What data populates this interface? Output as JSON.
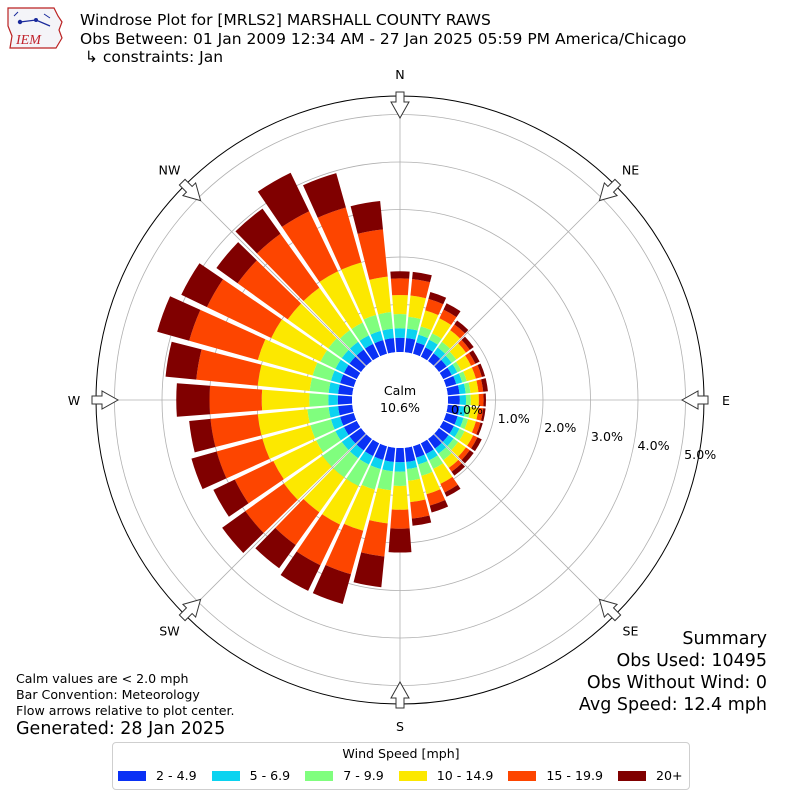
{
  "header": {
    "title_line1": "Windrose Plot for [MRLS2] MARSHALL COUNTY RAWS",
    "title_line2": "Obs Between: 01 Jan 2009 12:34 AM - 27 Jan 2025 05:59 PM America/Chicago",
    "title_line3": " ↳ constraints: Jan",
    "logo_text": "IEM"
  },
  "notes": {
    "line1": "Calm values are < 2.0 mph",
    "line2": "Bar Convention: Meteorology",
    "line3": "Flow arrows relative to plot center.",
    "generated": "Generated: 28 Jan 2025"
  },
  "summary": {
    "heading": "Summary",
    "obs_used": "Obs Used: 10495",
    "obs_without_wind": "Obs Without Wind: 0",
    "avg_speed": "Avg Speed: 12.4 mph"
  },
  "chart_data": {
    "type": "windrose",
    "units": "percent of observations",
    "calm": {
      "label": "Calm",
      "value": "10.6%"
    },
    "radial_ticks": [
      "0.0%",
      "1.0%",
      "2.0%",
      "3.0%",
      "4.0%",
      "5.0%"
    ],
    "radial_range": [
      0,
      5.5
    ],
    "direction_labels": [
      "N",
      "NE",
      "E",
      "SE",
      "S",
      "SW",
      "W",
      "NW"
    ],
    "legend_title": "Wind Speed [mph]",
    "bins": [
      {
        "label": "2 - 4.9",
        "color": "#0a31f5"
      },
      {
        "label": "5 - 6.9",
        "color": "#0bd3f0"
      },
      {
        "label": "7 - 9.9",
        "color": "#80fe7e"
      },
      {
        "label": "10 - 14.9",
        "color": "#fce800"
      },
      {
        "label": "15 - 19.9",
        "color": "#fd4500"
      },
      {
        "label": "20+",
        "color": "#800000"
      }
    ],
    "directions": [
      {
        "dir": 0,
        "cum": [
          0.3,
          0.5,
          0.8,
          1.2,
          1.55,
          1.7
        ]
      },
      {
        "dir": 10,
        "cum": [
          0.3,
          0.5,
          0.75,
          1.2,
          1.55,
          1.7
        ]
      },
      {
        "dir": 20,
        "cum": [
          0.25,
          0.42,
          0.6,
          0.95,
          1.2,
          1.35
        ]
      },
      {
        "dir": 30,
        "cum": [
          0.22,
          0.4,
          0.55,
          0.9,
          1.1,
          1.25
        ]
      },
      {
        "dir": 40,
        "cum": [
          0.2,
          0.35,
          0.5,
          0.8,
          0.95,
          1.05
        ]
      },
      {
        "dir": 50,
        "cum": [
          0.2,
          0.33,
          0.45,
          0.7,
          0.8,
          0.9
        ]
      },
      {
        "dir": 60,
        "cum": [
          0.2,
          0.33,
          0.42,
          0.65,
          0.75,
          0.85
        ]
      },
      {
        "dir": 70,
        "cum": [
          0.22,
          0.35,
          0.45,
          0.65,
          0.78,
          0.85
        ]
      },
      {
        "dir": 80,
        "cum": [
          0.25,
          0.38,
          0.48,
          0.65,
          0.75,
          0.85
        ]
      },
      {
        "dir": 90,
        "cum": [
          0.25,
          0.38,
          0.48,
          0.65,
          0.75,
          0.8
        ]
      },
      {
        "dir": 100,
        "cum": [
          0.25,
          0.38,
          0.48,
          0.65,
          0.75,
          0.8
        ]
      },
      {
        "dir": 110,
        "cum": [
          0.25,
          0.38,
          0.48,
          0.65,
          0.75,
          0.8
        ]
      },
      {
        "dir": 120,
        "cum": [
          0.25,
          0.38,
          0.5,
          0.7,
          0.8,
          0.9
        ]
      },
      {
        "dir": 130,
        "cum": [
          0.25,
          0.38,
          0.5,
          0.7,
          0.8,
          0.9
        ]
      },
      {
        "dir": 140,
        "cum": [
          0.25,
          0.38,
          0.55,
          0.75,
          0.85,
          0.95
        ]
      },
      {
        "dir": 150,
        "cum": [
          0.25,
          0.4,
          0.6,
          0.95,
          1.15,
          1.25
        ]
      },
      {
        "dir": 160,
        "cum": [
          0.25,
          0.4,
          0.65,
          1.05,
          1.3,
          1.45
        ]
      },
      {
        "dir": 170,
        "cum": [
          0.3,
          0.45,
          0.7,
          1.15,
          1.5,
          1.65
        ]
      },
      {
        "dir": 180,
        "cum": [
          0.3,
          0.5,
          0.8,
          1.3,
          1.7,
          2.2
        ]
      },
      {
        "dir": 190,
        "cum": [
          0.3,
          0.5,
          0.9,
          1.6,
          2.3,
          2.95
        ]
      },
      {
        "dir": 200,
        "cum": [
          0.3,
          0.5,
          0.95,
          1.85,
          2.8,
          3.45
        ]
      },
      {
        "dir": 210,
        "cum": [
          0.3,
          0.5,
          1.0,
          1.9,
          2.85,
          3.45
        ]
      },
      {
        "dir": 220,
        "cum": [
          0.3,
          0.5,
          1.0,
          1.9,
          2.75,
          3.35
        ]
      },
      {
        "dir": 230,
        "cum": [
          0.3,
          0.5,
          1.0,
          2.0,
          3.0,
          3.6
        ]
      },
      {
        "dir": 240,
        "cum": [
          0.3,
          0.5,
          0.95,
          1.95,
          2.85,
          3.35
        ]
      },
      {
        "dir": 250,
        "cum": [
          0.3,
          0.5,
          0.95,
          2.0,
          3.0,
          3.55
        ]
      },
      {
        "dir": 260,
        "cum": [
          0.3,
          0.5,
          0.95,
          2.0,
          3.0,
          3.45
        ]
      },
      {
        "dir": 270,
        "cum": [
          0.3,
          0.5,
          0.9,
          1.9,
          3.0,
          3.7
        ]
      },
      {
        "dir": 280,
        "cum": [
          0.3,
          0.5,
          0.9,
          2.0,
          3.3,
          3.95
        ]
      },
      {
        "dir": 290,
        "cum": [
          0.3,
          0.5,
          0.9,
          2.1,
          3.6,
          4.3
        ]
      },
      {
        "dir": 300,
        "cum": [
          0.3,
          0.5,
          0.85,
          2.0,
          3.5,
          4.1
        ]
      },
      {
        "dir": 310,
        "cum": [
          0.3,
          0.5,
          0.85,
          1.9,
          3.2,
          3.75
        ]
      },
      {
        "dir": 320,
        "cum": [
          0.3,
          0.5,
          0.8,
          1.9,
          3.3,
          3.95
        ]
      },
      {
        "dir": 330,
        "cum": [
          0.3,
          0.5,
          0.8,
          2.0,
          3.4,
          4.3
        ]
      },
      {
        "dir": 340,
        "cum": [
          0.3,
          0.5,
          0.85,
          2.0,
          3.2,
          3.95
        ]
      },
      {
        "dir": 350,
        "cum": [
          0.3,
          0.5,
          0.85,
          1.6,
          2.6,
          3.2
        ]
      }
    ]
  }
}
